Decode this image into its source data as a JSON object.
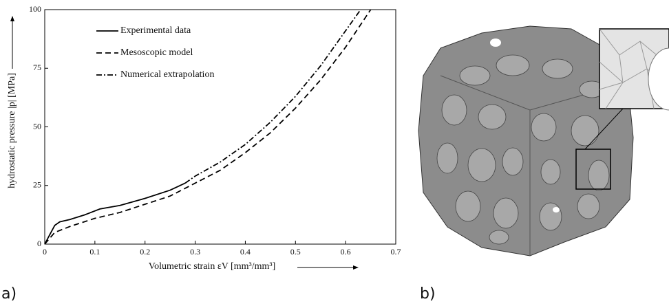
{
  "chart_data": {
    "type": "line",
    "xlabel": "Volumetric strain εV [mm³/mm³]",
    "ylabel": "hydrostatic pressure |p| [MPa]",
    "xlim": [
      0,
      0.7
    ],
    "xticks": [
      0,
      0.1,
      0.2,
      0.3,
      0.4,
      0.5,
      0.6,
      0.7
    ],
    "ylim": [
      0,
      100
    ],
    "yticks": [
      0,
      25,
      50,
      75,
      100
    ],
    "legend": "upper left",
    "series": [
      {
        "name": "Experimental data",
        "color": "#000000",
        "dash": "solid",
        "x": [
          0,
          0.01,
          0.02,
          0.03,
          0.05,
          0.08,
          0.11,
          0.15,
          0.2,
          0.25,
          0.28
        ],
        "values": [
          0,
          4,
          8,
          9.5,
          10.5,
          12.5,
          15,
          16.5,
          19.5,
          23,
          26
        ]
      },
      {
        "name": "Mesoscopic model",
        "color": "#000000",
        "dash": "dashed",
        "x": [
          0,
          0.02,
          0.05,
          0.1,
          0.15,
          0.2,
          0.25,
          0.3,
          0.35,
          0.4,
          0.45,
          0.5,
          0.55,
          0.6,
          0.65
        ],
        "values": [
          0,
          5,
          7.5,
          11,
          13.5,
          17,
          20.5,
          26,
          31.5,
          39,
          47.5,
          58,
          70,
          84,
          100
        ]
      },
      {
        "name": "Numerical extrapolation",
        "color": "#000000",
        "dash": "dashdot",
        "x": [
          0.28,
          0.3,
          0.35,
          0.4,
          0.45,
          0.5,
          0.55,
          0.6,
          0.63
        ],
        "values": [
          26,
          29,
          35,
          42.5,
          52,
          63,
          76,
          91,
          100
        ]
      }
    ]
  },
  "panels": {
    "a": "a)",
    "b": "b)"
  }
}
